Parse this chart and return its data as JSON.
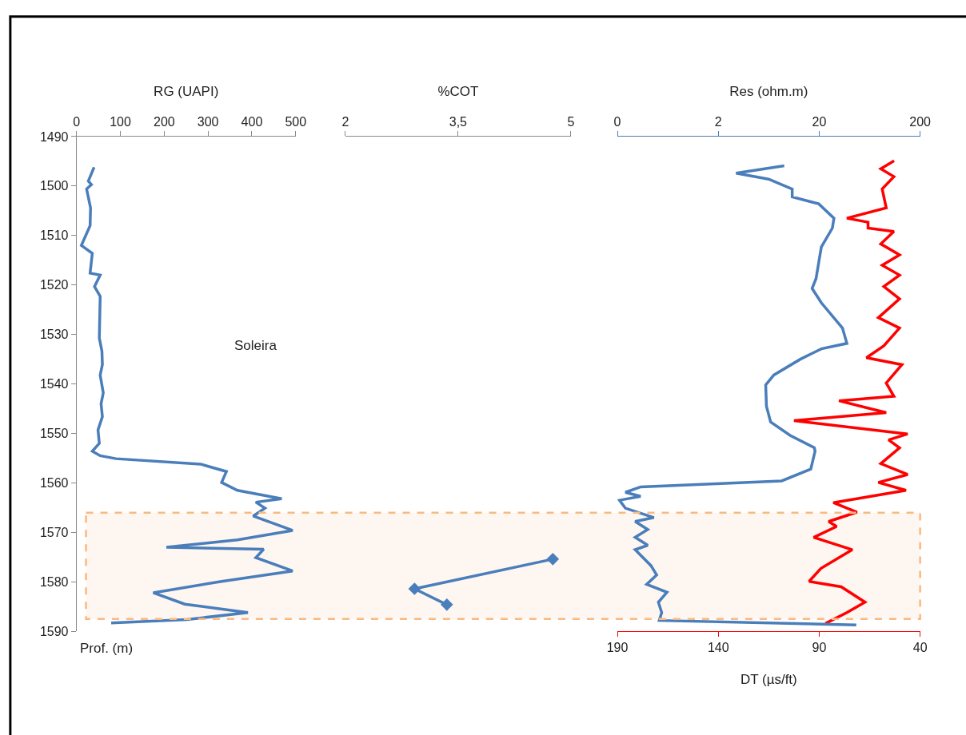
{
  "chart_data": [
    {
      "type": "line",
      "xlabel": "RG (UAPI)",
      "xlim": [
        0,
        500
      ],
      "xticks": [
        0,
        100,
        200,
        300,
        400,
        500
      ],
      "ylim": [
        1590,
        1490
      ],
      "yticks": [
        1490,
        1500,
        1510,
        1520,
        1530,
        1540,
        1550,
        1560,
        1570,
        1580,
        1590
      ],
      "grid": false,
      "marker": "none",
      "annotations": [
        "Soleira",
        "Prof. (m)"
      ],
      "bands": [
        {
          "axis": "y",
          "from": 1566,
          "to": 1587.5,
          "color": "#f9b982"
        }
      ],
      "series": [
        {
          "color": "#4a7ebb",
          "x": [
            40,
            27,
            34,
            23,
            32,
            31,
            11,
            36,
            31,
            54,
            41,
            54,
            52,
            58,
            59,
            54,
            61,
            56,
            59,
            49,
            52,
            36,
            54,
            90,
            283,
            342,
            331,
            367,
            468,
            409,
            430,
            403,
            493,
            367,
            205,
            427,
            409,
            493,
            331,
            175,
            247,
            391,
            252,
            79
          ],
          "values": [
            1496.2,
            1499,
            1499.7,
            1500.6,
            1504.4,
            1508,
            1512,
            1513.6,
            1517.6,
            1518,
            1520.3,
            1522.3,
            1530.7,
            1533.4,
            1536.1,
            1538.2,
            1541.8,
            1544,
            1546.6,
            1549.3,
            1552,
            1553.6,
            1554.5,
            1555.1,
            1556.2,
            1557.7,
            1559.9,
            1561.5,
            1563.2,
            1563.9,
            1565.1,
            1566.7,
            1569.6,
            1571.5,
            1573,
            1573.4,
            1575.1,
            1577.8,
            1579.9,
            1582.2,
            1584.5,
            1586.2,
            1587.6,
            1588.3
          ]
        }
      ]
    },
    {
      "type": "line",
      "xlabel": "%COT",
      "xlim": [
        2,
        5
      ],
      "xticks": [
        2,
        {
          "value": 3.5,
          "label": "3,5"
        },
        5
      ],
      "ylim": [
        1590,
        1490
      ],
      "tick_labels": "x",
      "grid": false,
      "marker": "diamond",
      "series": [
        {
          "color": "#4a7ebb",
          "x": [
            4.76,
            2.92,
            3.35
          ],
          "values": [
            1575.4,
            1581.4,
            1584.6
          ]
        }
      ]
    },
    {
      "type": "line",
      "xlabel": "DT (µs/ft)",
      "x2label": "Res (ohm.m)",
      "xlim": [
        190,
        40
      ],
      "xticks": [
        190,
        140,
        90,
        40
      ],
      "x2lim": [
        0.2,
        200
      ],
      "x2ticks": [
        {
          "value": 0.2,
          "label": "0"
        },
        2,
        20,
        200
      ],
      "log": "x2",
      "ylim": [
        1590,
        1490
      ],
      "tick_labels": "x",
      "grid": false,
      "marker": "none",
      "series": [
        {
          "color": "#4a7ebb",
          "axis": "x2",
          "x": [
            9.0,
            3.0,
            6.3,
            10.8,
            10.8,
            19.8,
            28,
            27,
            21,
            18.6,
            17,
            21,
            34,
            37.6,
            21,
            13,
            7.1,
            5.9,
            6.0,
            6.6,
            10.3,
            17.9,
            18.2,
            16.5,
            8.5,
            0.34,
            0.24,
            0.34,
            0.21,
            0.24,
            0.46,
            0.3,
            0.4,
            0.3,
            0.4,
            0.3,
            0.43,
            0.49,
            0.39,
            0.62,
            0.51,
            0.55,
            0.52,
            46.6
          ],
          "values": [
            1495.9,
            1497.4,
            1498.6,
            1500.6,
            1502.2,
            1503.6,
            1506.5,
            1508.5,
            1512.3,
            1518.7,
            1520.7,
            1523.6,
            1528.7,
            1531.8,
            1532.9,
            1535,
            1538.2,
            1540.2,
            1544.5,
            1547.7,
            1550.4,
            1552.9,
            1553.6,
            1557.2,
            1559.6,
            1560.8,
            1561.9,
            1562.7,
            1563.5,
            1565.1,
            1567,
            1567.8,
            1569.4,
            1571,
            1572.6,
            1573.5,
            1576.7,
            1578.6,
            1580.5,
            1582.1,
            1584.1,
            1586.2,
            1587.8,
            1588.7
          ]
        },
        {
          "color": "#ff0000",
          "x": [
            52.9,
            59.5,
            53,
            58.8,
            56.8,
            76.3,
            65.8,
            65.8,
            53,
            59.5,
            50.2,
            58.8,
            50.2,
            58,
            50.2,
            60.7,
            50.2,
            58,
            66.6,
            49,
            56.8,
            53,
            80.2,
            56.8,
            102.5,
            46.2,
            55.6,
            50.2,
            59.5,
            46.2,
            60.7,
            47,
            83,
            71.3,
            85.3,
            81.4,
            92.7,
            73.6,
            89.2,
            95,
            79.1,
            67.3,
            76.3,
            86.9
          ],
          "values": [
            1494.9,
            1496.5,
            1498.1,
            1500.6,
            1504.4,
            1506.5,
            1507.3,
            1508.5,
            1509.2,
            1511.7,
            1513.9,
            1516,
            1518,
            1520.3,
            1522.8,
            1526.6,
            1528.7,
            1532.3,
            1534.7,
            1536.1,
            1539.8,
            1542.5,
            1543.4,
            1545.8,
            1547.4,
            1550.1,
            1551.3,
            1552.9,
            1556.1,
            1558.3,
            1559.9,
            1561.5,
            1564,
            1565.9,
            1567.8,
            1568.8,
            1571,
            1573.5,
            1577.3,
            1579.9,
            1581,
            1584.1,
            1586.2,
            1588.4
          ]
        }
      ]
    }
  ]
}
